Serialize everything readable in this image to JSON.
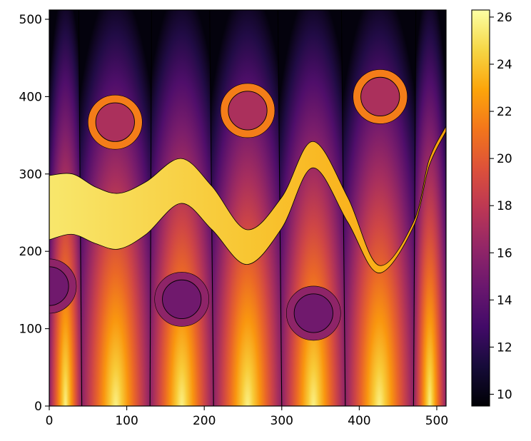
{
  "chart_data": {
    "type": "heatmap",
    "title": "",
    "xlabel": "",
    "ylabel": "",
    "colormap": "inferno",
    "xlim": [
      0,
      512
    ],
    "ylim": [
      0,
      512
    ],
    "x_ticks": [
      0,
      100,
      200,
      300,
      400,
      500
    ],
    "y_ticks": [
      0,
      100,
      200,
      300,
      400,
      500
    ],
    "colorbar": {
      "range": [
        9.5,
        26.3
      ],
      "ticks": [
        10,
        12,
        14,
        16,
        18,
        20,
        22,
        24,
        26
      ]
    },
    "background_field": {
      "description_values": "value decreases from bottom (~24-26) to top (~10)",
      "bottom_value_bright": 26,
      "bottom_value_dim": 23,
      "top_value_bright": 14,
      "top_value_dim": 9.8
    },
    "column_boundaries_bottom": [
      42,
      130,
      212,
      300,
      382,
      470
    ],
    "column_boundaries_top": [
      38,
      132,
      207,
      295,
      377,
      473
    ],
    "band": {
      "value_left": 25.3,
      "value_right": 22.8,
      "points": [
        {
          "x": 0,
          "lower": 215,
          "upper": 298
        },
        {
          "x": 30,
          "lower": 222,
          "upper": 300
        },
        {
          "x": 60,
          "lower": 210,
          "upper": 283
        },
        {
          "x": 90,
          "lower": 203,
          "upper": 275
        },
        {
          "x": 125,
          "lower": 222,
          "upper": 290
        },
        {
          "x": 170,
          "lower": 262,
          "upper": 320
        },
        {
          "x": 210,
          "lower": 228,
          "upper": 284
        },
        {
          "x": 255,
          "lower": 183,
          "upper": 228
        },
        {
          "x": 300,
          "lower": 230,
          "upper": 270
        },
        {
          "x": 340,
          "lower": 308,
          "upper": 342
        },
        {
          "x": 385,
          "lower": 238,
          "upper": 270
        },
        {
          "x": 425,
          "lower": 172,
          "upper": 182
        },
        {
          "x": 470,
          "lower": 232,
          "upper": 238
        },
        {
          "x": 490,
          "lower": 310,
          "upper": 318
        },
        {
          "x": 512,
          "lower": 355,
          "upper": 362
        }
      ]
    },
    "circles": [
      {
        "x": 85,
        "y": 367,
        "outer_r": 35,
        "inner_r": 25,
        "ring_value": 21.5,
        "core_value": 17.2
      },
      {
        "x": 256,
        "y": 382,
        "outer_r": 35,
        "inner_r": 25,
        "ring_value": 21.5,
        "core_value": 17.2
      },
      {
        "x": 427,
        "y": 400,
        "outer_r": 35,
        "inner_r": 25,
        "ring_value": 21.5,
        "core_value": 17.2
      },
      {
        "x": 0,
        "y": 155,
        "outer_r": 35,
        "inner_r": 25,
        "ring_value": 16.0,
        "core_value": 14.8
      },
      {
        "x": 171,
        "y": 138,
        "outer_r": 35,
        "inner_r": 25,
        "ring_value": 16.0,
        "core_value": 14.8
      },
      {
        "x": 341,
        "y": 120,
        "outer_r": 35,
        "inner_r": 25,
        "ring_value": 16.0,
        "core_value": 14.8
      }
    ]
  }
}
